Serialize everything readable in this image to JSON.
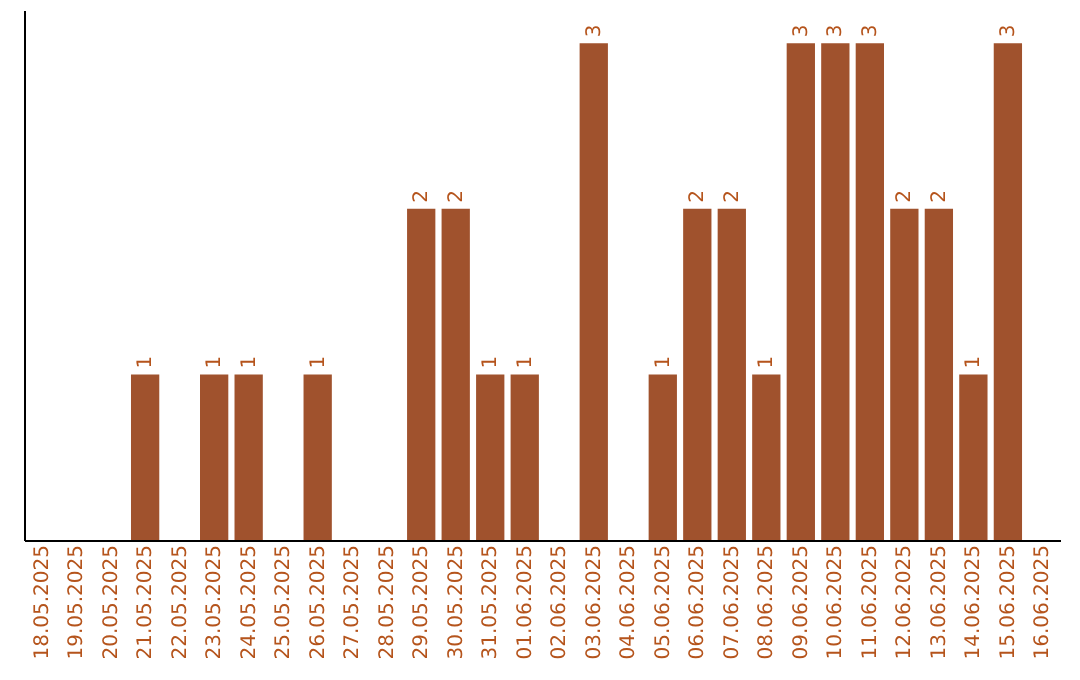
{
  "chart_data": {
    "type": "bar",
    "categories": [
      "18.05.2025",
      "19.05.2025",
      "20.05.2025",
      "21.05.2025",
      "22.05.2025",
      "23.05.2025",
      "24.05.2025",
      "25.05.2025",
      "26.05.2025",
      "27.05.2025",
      "28.05.2025",
      "29.05.2025",
      "30.05.2025",
      "31.05.2025",
      "01.06.2025",
      "02.06.2025",
      "03.06.2025",
      "04.06.2025",
      "05.06.2025",
      "06.06.2025",
      "07.06.2025",
      "08.06.2025",
      "09.06.2025",
      "10.06.2025",
      "11.06.2025",
      "12.06.2025",
      "13.06.2025",
      "14.06.2025",
      "15.06.2025",
      "16.06.2025"
    ],
    "values": [
      0,
      0,
      0,
      1,
      0,
      1,
      1,
      0,
      1,
      0,
      0,
      2,
      2,
      1,
      1,
      0,
      3,
      0,
      1,
      2,
      2,
      1,
      3,
      3,
      3,
      2,
      2,
      1,
      3,
      0
    ],
    "value_labels": [
      null,
      null,
      null,
      "1",
      null,
      "1",
      "1",
      null,
      "1",
      null,
      null,
      "2",
      "2",
      "1",
      "1",
      null,
      "3",
      null,
      "1",
      "2",
      "2",
      "1",
      "3",
      "3",
      "3",
      "2",
      "2",
      "1",
      "3",
      null
    ],
    "color": "#a0522d",
    "ylim": [
      0,
      3.2
    ],
    "tick_labels": "x",
    "grid": false
  }
}
